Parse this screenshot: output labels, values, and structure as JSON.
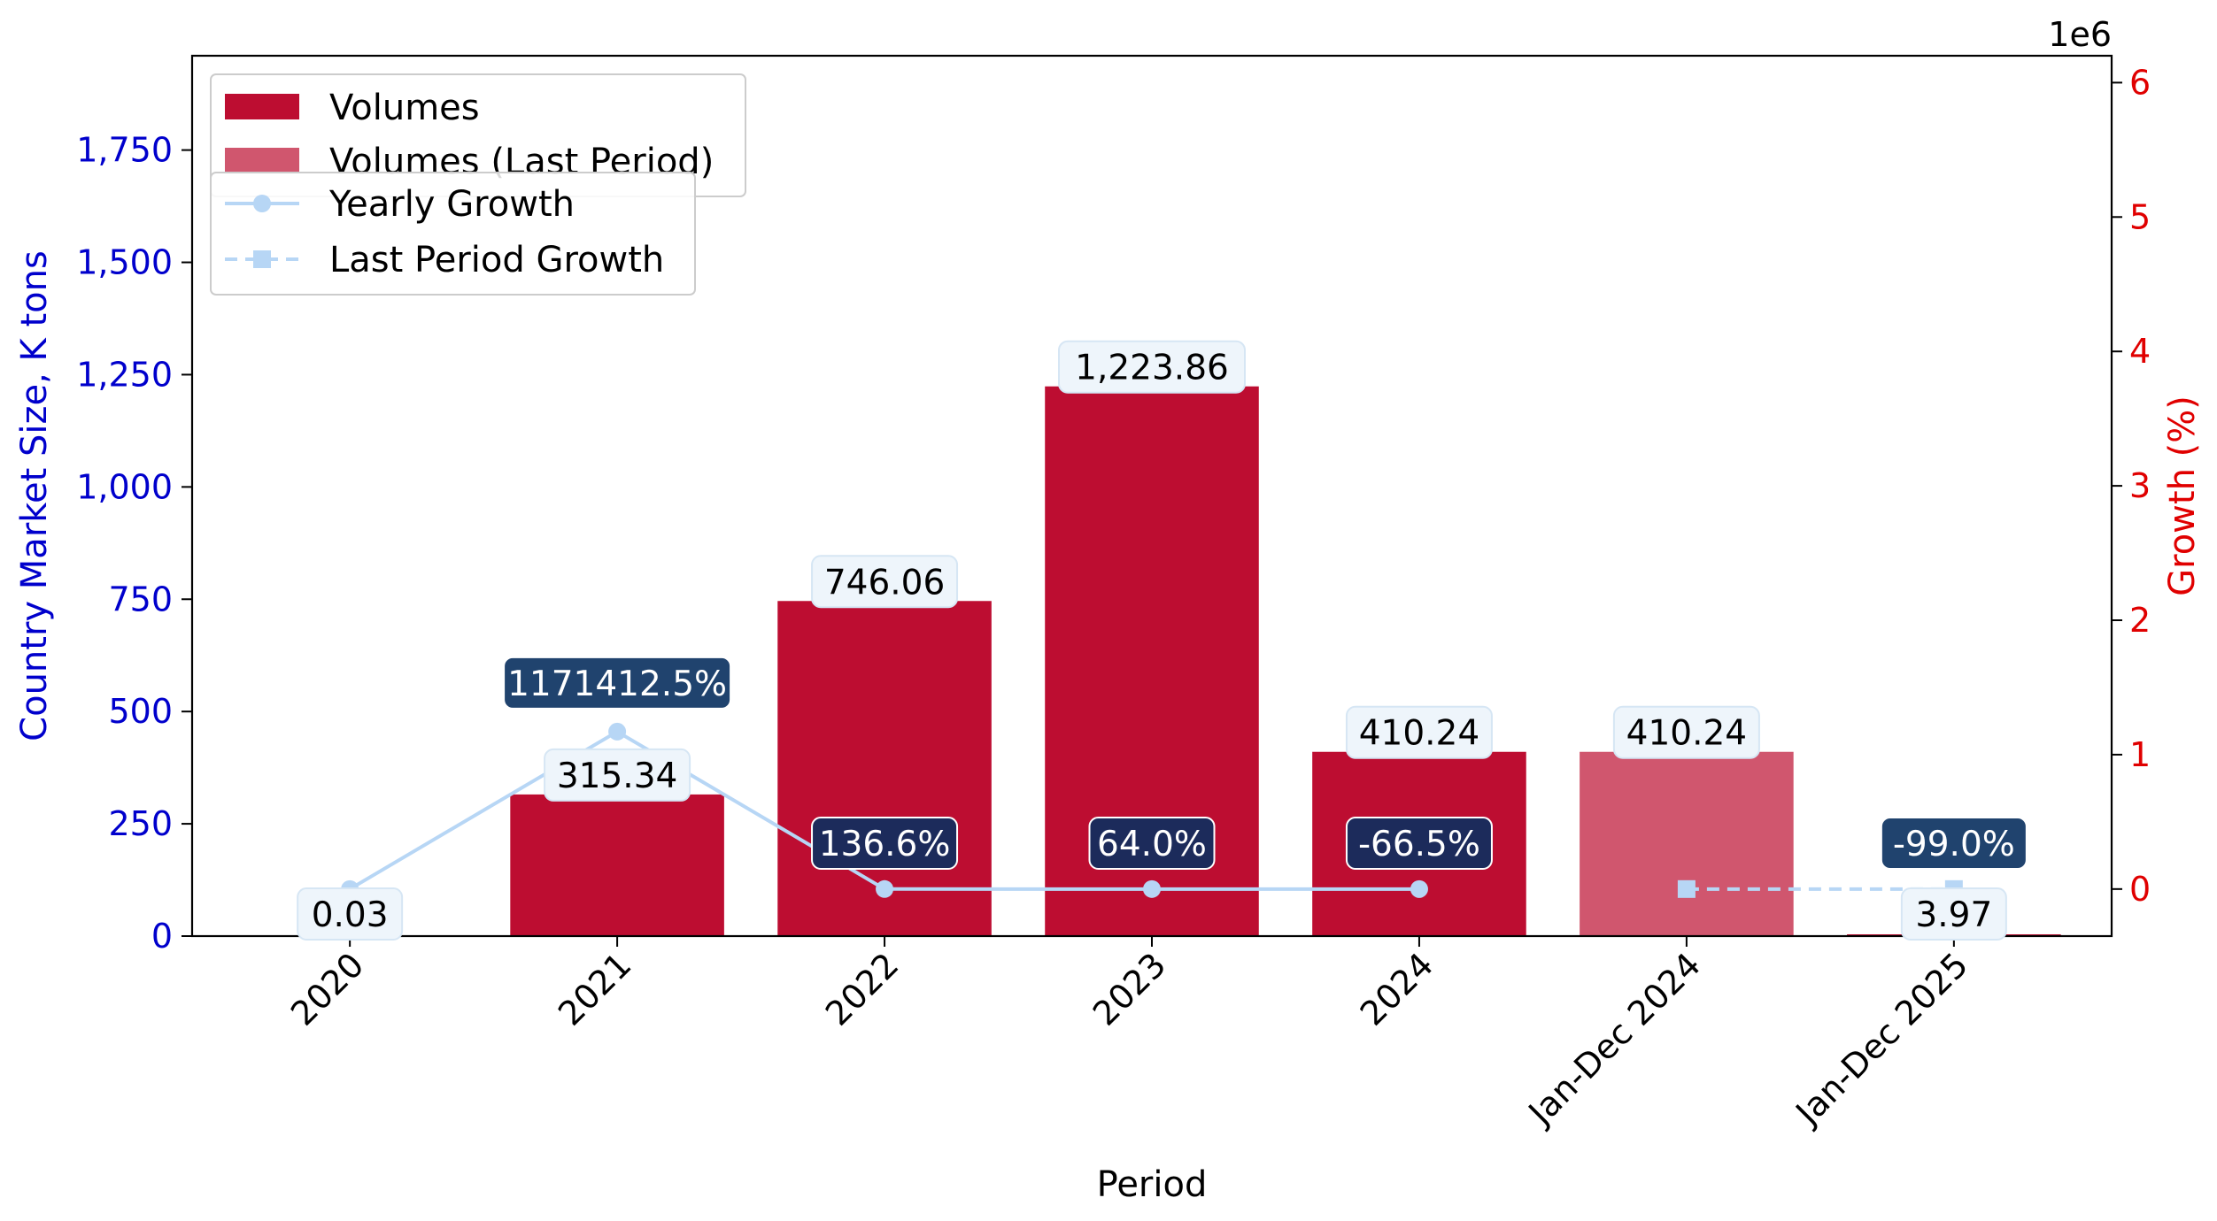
{
  "chart_data": {
    "type": "bar",
    "categories": [
      "2020",
      "2021",
      "2022",
      "2023",
      "2024",
      "Jan-Dec 2024",
      "Jan-Dec 2025"
    ],
    "xlabel": "Period",
    "ylabel": "Country Market Size, K tons",
    "y2label": "Growth (%)",
    "y2_offset_label": "1e6",
    "ylim": [
      0,
      1960
    ],
    "y2lim": [
      -350000,
      6200000
    ],
    "yticks": [
      0,
      250,
      500,
      750,
      1000,
      1250,
      1500,
      1750
    ],
    "ytick_labels": [
      "0",
      "250",
      "500",
      "750",
      "1,000",
      "1,250",
      "1,500",
      "1,750"
    ],
    "y2ticks": [
      0,
      1000000,
      2000000,
      3000000,
      4000000,
      5000000,
      6000000
    ],
    "y2tick_labels": [
      "0",
      "1",
      "2",
      "3",
      "4",
      "5",
      "6"
    ],
    "grid": false,
    "legend_placement": "top-left",
    "series": [
      {
        "name": "Volumes",
        "kind": "bar",
        "color": "#bd0d31",
        "values": [
          0.03,
          315.34,
          746.06,
          1223.86,
          410.24,
          null,
          3.97
        ],
        "labels": [
          "0.03",
          "315.34",
          "746.06",
          "1,223.86",
          "410.24",
          "",
          "3.97"
        ]
      },
      {
        "name": "Volumes (Last Period)",
        "kind": "bar",
        "color": "#d0566e",
        "values": [
          null,
          null,
          null,
          null,
          null,
          410.24,
          null
        ],
        "labels": [
          "",
          "",
          "",
          "",
          "",
          "410.24",
          ""
        ]
      },
      {
        "name": "Yearly Growth",
        "kind": "line",
        "axis": "y2",
        "color": "#b7d6f5",
        "values": [
          0,
          1171412.5,
          136.6,
          64.0,
          -66.5,
          null,
          null
        ],
        "labels": [
          "",
          "1171412.5%",
          "136.6%",
          "64.0%",
          "-66.5%",
          "",
          ""
        ]
      },
      {
        "name": "Last Period Growth",
        "kind": "line",
        "axis": "y2",
        "color": "#b7d6f5",
        "dashed": true,
        "values": [
          null,
          null,
          null,
          null,
          null,
          0,
          -99.0
        ],
        "labels": [
          "",
          "",
          "",
          "",
          "",
          "",
          "-99.0%"
        ]
      }
    ],
    "colors": {
      "left_axis": "#0000cc",
      "right_axis": "#e00000",
      "label_box_light": "#eef5fb",
      "label_box_dark_1": "#20436e",
      "label_box_dark_2": "#1c2b5b"
    }
  }
}
